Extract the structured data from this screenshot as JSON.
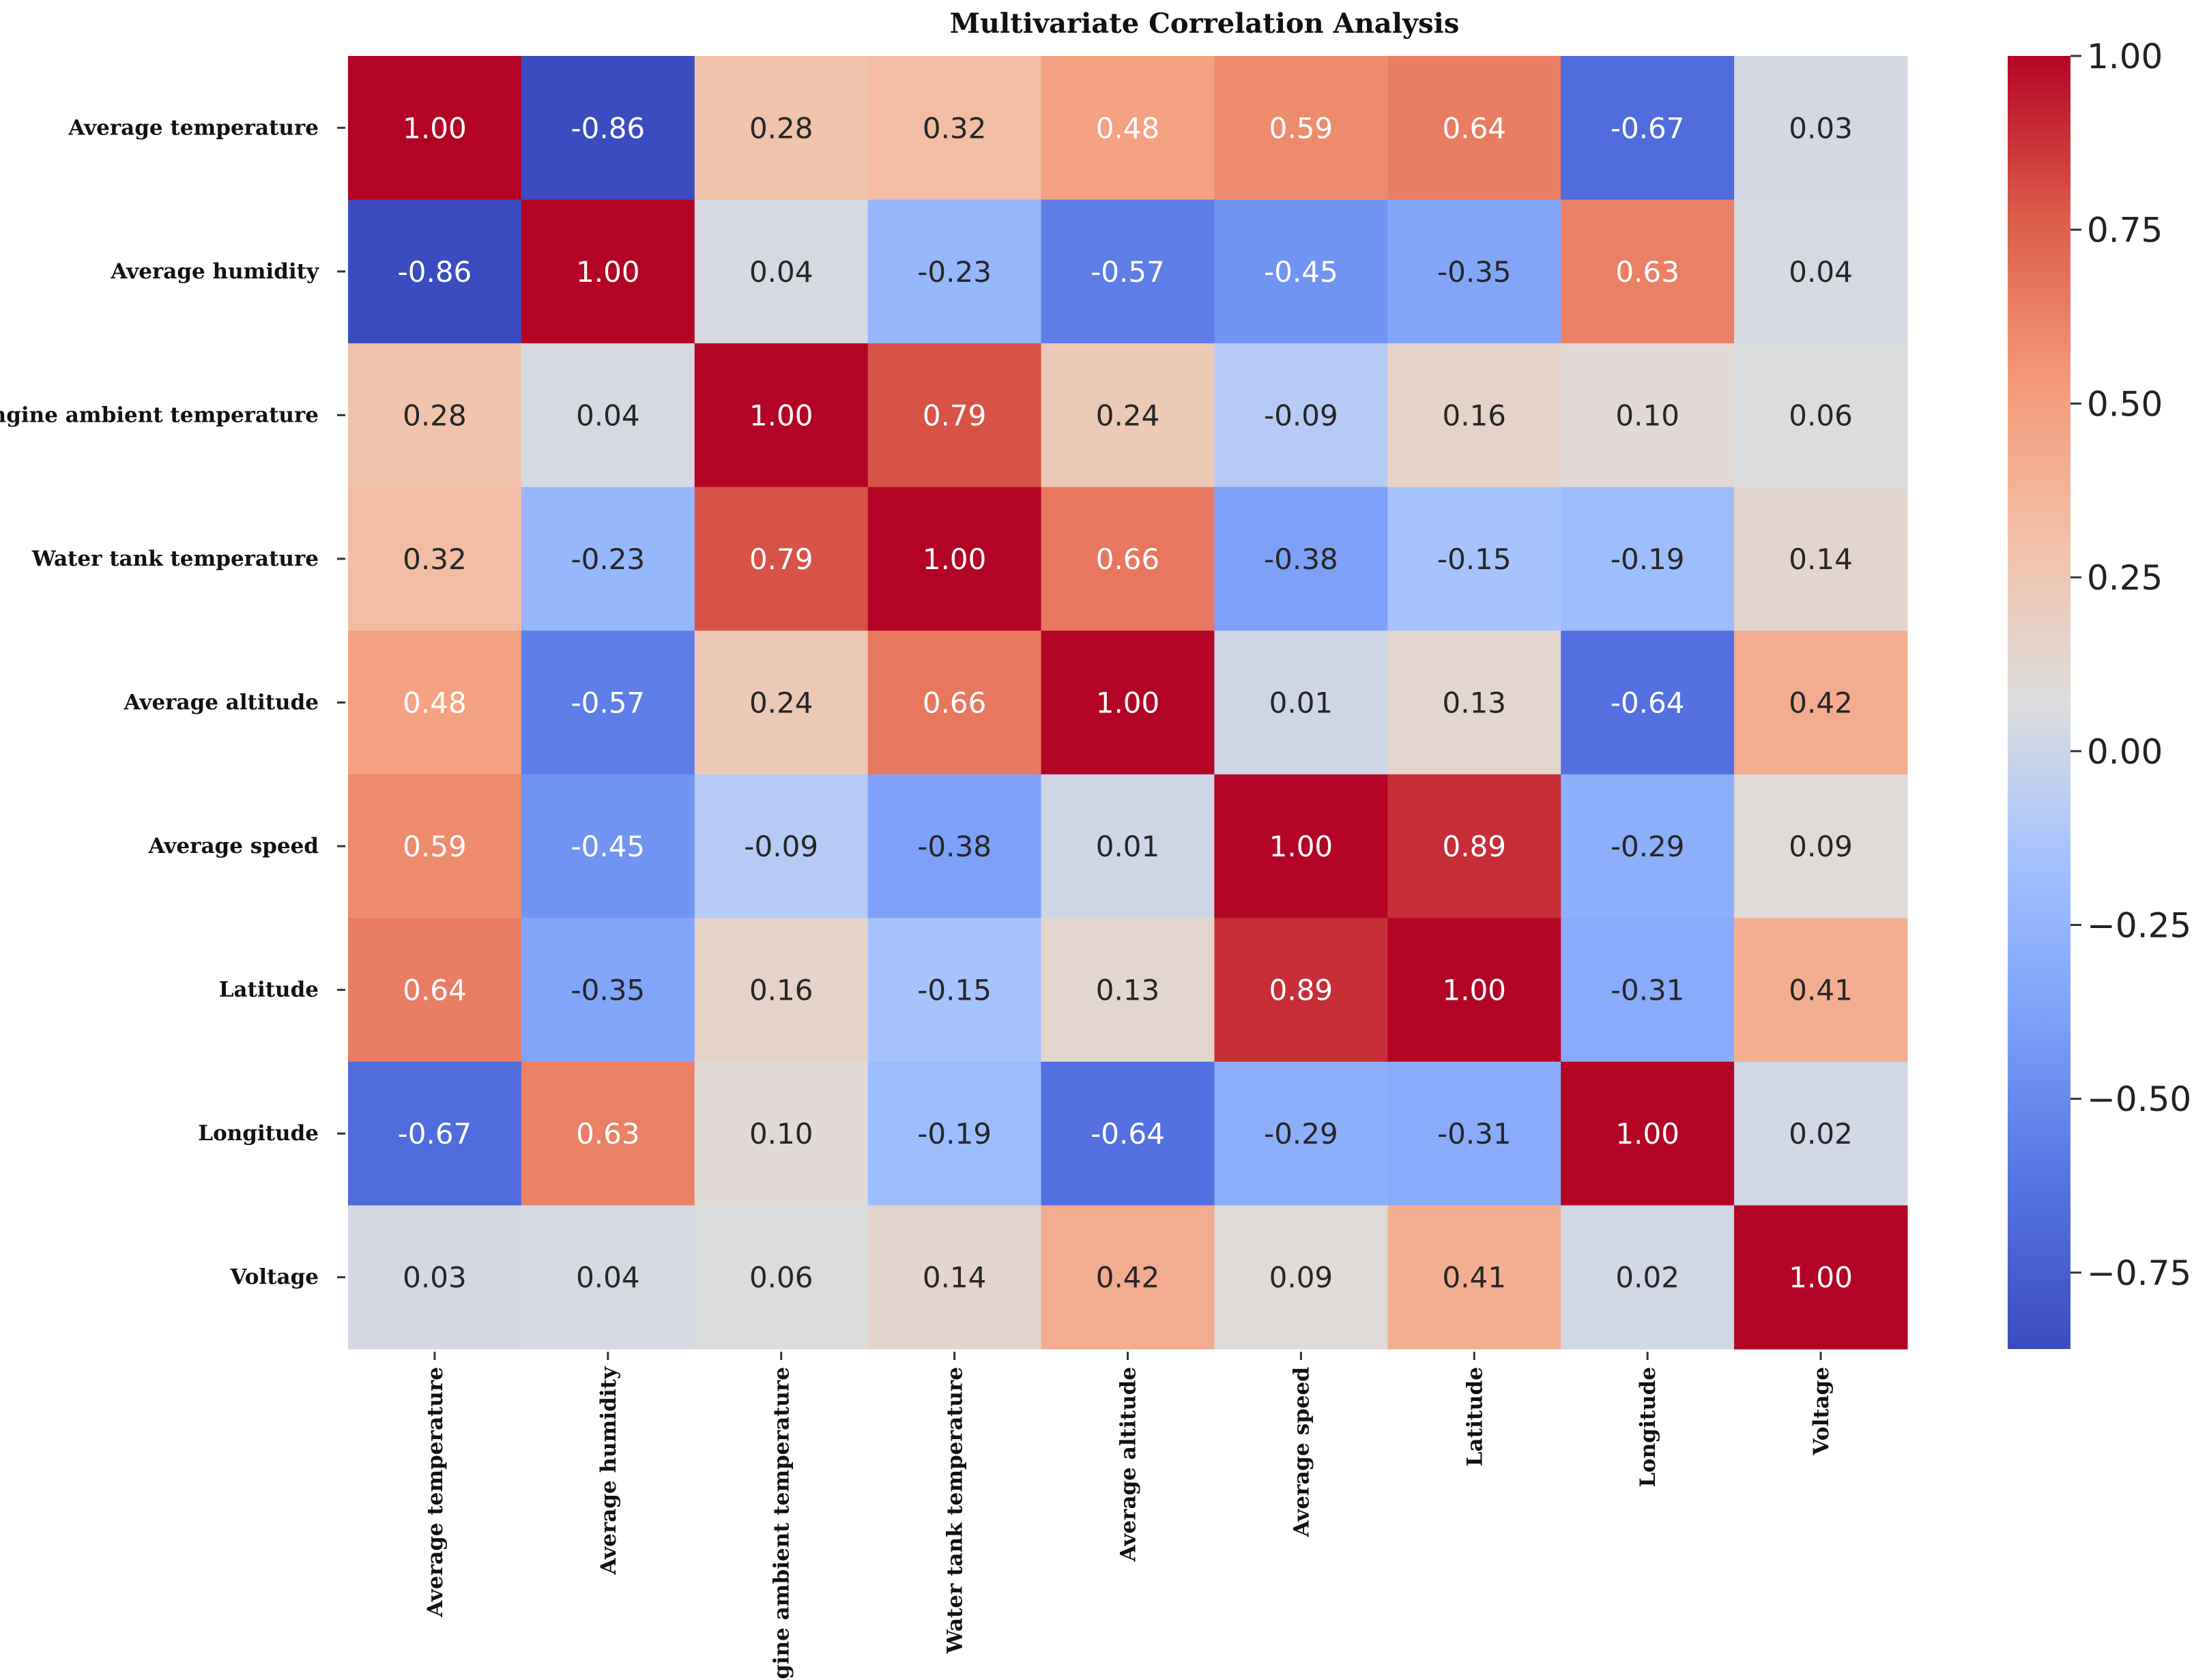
{
  "chart_data": {
    "type": "heatmap",
    "title": "Multivariate Correlation Analysis",
    "row_labels": [
      "Average temperature",
      "Average humidity",
      "Engine ambient temperature",
      "Water tank temperature",
      "Average altitude",
      "Average speed",
      "Latitude",
      "Longitude",
      "Voltage"
    ],
    "col_labels": [
      "Average temperature",
      "Average humidity",
      "Engine ambient temperature",
      "Water tank temperature",
      "Average altitude",
      "Average speed",
      "Latitude",
      "Longitude",
      "Voltage"
    ],
    "values": [
      [
        1.0,
        -0.86,
        0.28,
        0.32,
        0.48,
        0.59,
        0.64,
        -0.67,
        0.03
      ],
      [
        -0.86,
        1.0,
        0.04,
        -0.23,
        -0.57,
        -0.45,
        -0.35,
        0.63,
        0.04
      ],
      [
        0.28,
        0.04,
        1.0,
        0.79,
        0.24,
        -0.09,
        0.16,
        0.1,
        0.06
      ],
      [
        0.32,
        -0.23,
        0.79,
        1.0,
        0.66,
        -0.38,
        -0.15,
        -0.19,
        0.14
      ],
      [
        0.48,
        -0.57,
        0.24,
        0.66,
        1.0,
        0.01,
        0.13,
        -0.64,
        0.42
      ],
      [
        0.59,
        -0.45,
        -0.09,
        -0.38,
        0.01,
        1.0,
        0.89,
        -0.29,
        0.09
      ],
      [
        0.64,
        -0.35,
        0.16,
        -0.15,
        0.13,
        0.89,
        1.0,
        -0.31,
        0.41
      ],
      [
        -0.67,
        0.63,
        0.1,
        -0.19,
        -0.64,
        -0.29,
        -0.31,
        1.0,
        0.02
      ],
      [
        0.03,
        0.04,
        0.06,
        0.14,
        0.42,
        0.09,
        0.41,
        0.02,
        1.0
      ]
    ],
    "colormap": "coolwarm",
    "vmin": -0.86,
    "vmax": 1.0,
    "colorbar": {
      "ticks": [
        1.0,
        0.75,
        0.5,
        0.25,
        0.0,
        -0.25,
        -0.5,
        -0.75
      ],
      "tick_labels": [
        "1.00",
        "0.75",
        "0.50",
        "0.25",
        "0.00",
        "−0.25",
        "−0.50",
        "−0.75"
      ],
      "placement": "right"
    },
    "annotations": "cell values with 2 decimals"
  }
}
